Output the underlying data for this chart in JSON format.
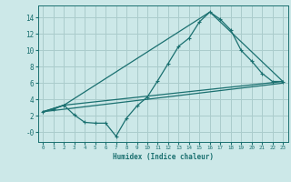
{
  "title": "",
  "xlabel": "Humidex (Indice chaleur)",
  "background_color": "#cce8e8",
  "grid_color": "#aacccc",
  "line_color": "#1a7070",
  "xlim": [
    -0.5,
    23.5
  ],
  "ylim": [
    -1.2,
    15.5
  ],
  "xticks": [
    0,
    1,
    2,
    3,
    4,
    5,
    6,
    7,
    8,
    9,
    10,
    11,
    12,
    13,
    14,
    15,
    16,
    17,
    18,
    19,
    20,
    21,
    22,
    23
  ],
  "yticks": [
    0,
    2,
    4,
    6,
    8,
    10,
    12,
    14
  ],
  "ytick_labels": [
    "-0",
    "2",
    "4",
    "6",
    "8",
    "10",
    "12",
    "14"
  ],
  "line1_x": [
    0,
    1,
    2,
    3,
    4,
    5,
    6,
    7,
    8,
    9,
    10,
    11,
    12,
    13,
    14,
    15,
    16,
    17,
    18,
    19,
    20,
    21,
    22,
    23
  ],
  "line1_y": [
    2.5,
    2.8,
    3.3,
    2.1,
    1.2,
    1.1,
    1.1,
    -0.5,
    1.7,
    3.2,
    4.3,
    6.3,
    8.4,
    10.5,
    11.5,
    13.5,
    14.7,
    13.8,
    12.5,
    10.0,
    8.7,
    7.2,
    6.2,
    6.2
  ],
  "line2_x": [
    0,
    2,
    16,
    23
  ],
  "line2_y": [
    2.5,
    3.3,
    14.7,
    6.2
  ],
  "line3_x": [
    0,
    2,
    23
  ],
  "line3_y": [
    2.5,
    3.3,
    6.2
  ],
  "line4_x": [
    0,
    23
  ],
  "line4_y": [
    2.5,
    6.0
  ]
}
